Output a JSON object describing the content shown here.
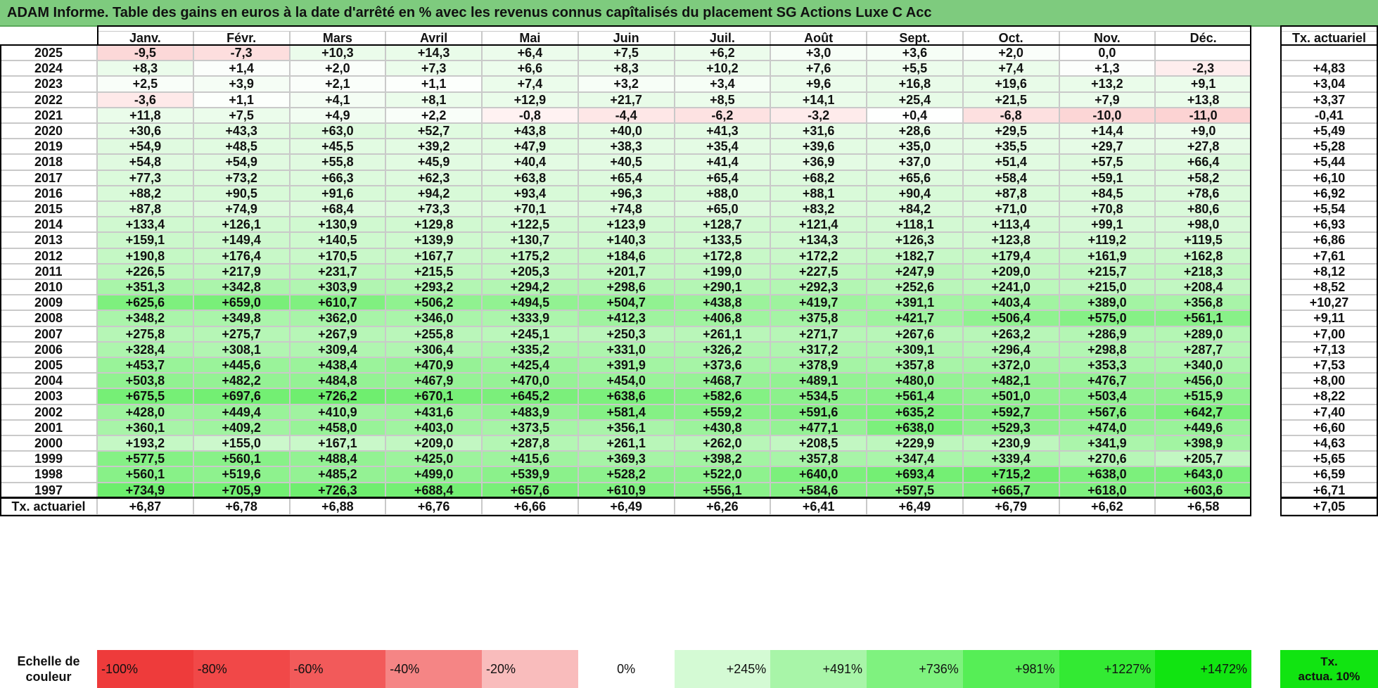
{
  "title": "ADAM Informe. Table des gains en euros à la date d'arrêté en % avec les revenus connus capîtalisés du placement SG Actions Luxe C Acc",
  "months": [
    "Janv.",
    "Févr.",
    "Mars",
    "Avril",
    "Mai",
    "Juin",
    "Juil.",
    "Août",
    "Sept.",
    "Oct.",
    "Nov.",
    "Déc."
  ],
  "tx_header": "Tx. actuariel",
  "rows": [
    {
      "year": "2025",
      "values": [
        "-9,5",
        "-7,3",
        "+10,3",
        "+14,3",
        "+6,4",
        "+7,5",
        "+6,2",
        "+3,0",
        "+3,6",
        "+2,0",
        "0,0",
        ""
      ],
      "tx": ""
    },
    {
      "year": "2024",
      "values": [
        "+8,3",
        "+1,4",
        "+2,0",
        "+7,3",
        "+6,6",
        "+8,3",
        "+10,2",
        "+7,6",
        "+5,5",
        "+7,4",
        "+1,3",
        "-2,3"
      ],
      "tx": "+4,83"
    },
    {
      "year": "2023",
      "values": [
        "+2,5",
        "+3,9",
        "+2,1",
        "+1,1",
        "+7,4",
        "+3,2",
        "+3,4",
        "+9,6",
        "+16,8",
        "+19,6",
        "+13,2",
        "+9,1"
      ],
      "tx": "+3,04"
    },
    {
      "year": "2022",
      "values": [
        "-3,6",
        "+1,1",
        "+4,1",
        "+8,1",
        "+12,9",
        "+21,7",
        "+8,5",
        "+14,1",
        "+25,4",
        "+21,5",
        "+7,9",
        "+13,8"
      ],
      "tx": "+3,37"
    },
    {
      "year": "2021",
      "values": [
        "+11,8",
        "+7,5",
        "+4,9",
        "+2,2",
        "-0,8",
        "-4,4",
        "-6,2",
        "-3,2",
        "+0,4",
        "-6,8",
        "-10,0",
        "-11,0"
      ],
      "tx": "-0,41"
    },
    {
      "year": "2020",
      "values": [
        "+30,6",
        "+43,3",
        "+63,0",
        "+52,7",
        "+43,8",
        "+40,0",
        "+41,3",
        "+31,6",
        "+28,6",
        "+29,5",
        "+14,4",
        "+9,0"
      ],
      "tx": "+5,49"
    },
    {
      "year": "2019",
      "values": [
        "+54,9",
        "+48,5",
        "+45,5",
        "+39,2",
        "+47,9",
        "+38,3",
        "+35,4",
        "+39,6",
        "+35,0",
        "+35,5",
        "+29,7",
        "+27,8"
      ],
      "tx": "+5,28"
    },
    {
      "year": "2018",
      "values": [
        "+54,8",
        "+54,9",
        "+55,8",
        "+45,9",
        "+40,4",
        "+40,5",
        "+41,4",
        "+36,9",
        "+37,0",
        "+51,4",
        "+57,5",
        "+66,4"
      ],
      "tx": "+5,44"
    },
    {
      "year": "2017",
      "values": [
        "+77,3",
        "+73,2",
        "+66,3",
        "+62,3",
        "+63,8",
        "+65,4",
        "+65,4",
        "+68,2",
        "+65,6",
        "+58,4",
        "+59,1",
        "+58,2"
      ],
      "tx": "+6,10"
    },
    {
      "year": "2016",
      "values": [
        "+88,2",
        "+90,5",
        "+91,6",
        "+94,2",
        "+93,4",
        "+96,3",
        "+88,0",
        "+88,1",
        "+90,4",
        "+87,8",
        "+84,5",
        "+78,6"
      ],
      "tx": "+6,92"
    },
    {
      "year": "2015",
      "values": [
        "+87,8",
        "+74,9",
        "+68,4",
        "+73,3",
        "+70,1",
        "+74,8",
        "+65,0",
        "+83,2",
        "+84,2",
        "+71,0",
        "+70,8",
        "+80,6"
      ],
      "tx": "+5,54"
    },
    {
      "year": "2014",
      "values": [
        "+133,4",
        "+126,1",
        "+130,9",
        "+129,8",
        "+122,5",
        "+123,9",
        "+128,7",
        "+121,4",
        "+118,1",
        "+113,4",
        "+99,1",
        "+98,0"
      ],
      "tx": "+6,93"
    },
    {
      "year": "2013",
      "values": [
        "+159,1",
        "+149,4",
        "+140,5",
        "+139,9",
        "+130,7",
        "+140,3",
        "+133,5",
        "+134,3",
        "+126,3",
        "+123,8",
        "+119,2",
        "+119,5"
      ],
      "tx": "+6,86"
    },
    {
      "year": "2012",
      "values": [
        "+190,8",
        "+176,4",
        "+170,5",
        "+167,7",
        "+175,2",
        "+184,6",
        "+172,8",
        "+172,2",
        "+182,7",
        "+179,4",
        "+161,9",
        "+162,8"
      ],
      "tx": "+7,61"
    },
    {
      "year": "2011",
      "values": [
        "+226,5",
        "+217,9",
        "+231,7",
        "+215,5",
        "+205,3",
        "+201,7",
        "+199,0",
        "+227,5",
        "+247,9",
        "+209,0",
        "+215,7",
        "+218,3"
      ],
      "tx": "+8,12"
    },
    {
      "year": "2010",
      "values": [
        "+351,3",
        "+342,8",
        "+303,9",
        "+293,2",
        "+294,2",
        "+298,6",
        "+290,1",
        "+292,3",
        "+252,6",
        "+241,0",
        "+215,0",
        "+208,4"
      ],
      "tx": "+8,52"
    },
    {
      "year": "2009",
      "values": [
        "+625,6",
        "+659,0",
        "+610,7",
        "+506,2",
        "+494,5",
        "+504,7",
        "+438,8",
        "+419,7",
        "+391,1",
        "+403,4",
        "+389,0",
        "+356,8"
      ],
      "tx": "+10,27"
    },
    {
      "year": "2008",
      "values": [
        "+348,2",
        "+349,8",
        "+362,0",
        "+346,0",
        "+333,9",
        "+412,3",
        "+406,8",
        "+375,8",
        "+421,7",
        "+506,4",
        "+575,0",
        "+561,1"
      ],
      "tx": "+9,11"
    },
    {
      "year": "2007",
      "values": [
        "+275,8",
        "+275,7",
        "+267,9",
        "+255,8",
        "+245,1",
        "+250,3",
        "+261,1",
        "+271,7",
        "+267,6",
        "+263,2",
        "+286,9",
        "+289,0"
      ],
      "tx": "+7,00"
    },
    {
      "year": "2006",
      "values": [
        "+328,4",
        "+308,1",
        "+309,4",
        "+306,4",
        "+335,2",
        "+331,0",
        "+326,2",
        "+317,2",
        "+309,1",
        "+296,4",
        "+298,8",
        "+287,7"
      ],
      "tx": "+7,13"
    },
    {
      "year": "2005",
      "values": [
        "+453,7",
        "+445,6",
        "+438,4",
        "+470,9",
        "+425,4",
        "+391,9",
        "+373,6",
        "+378,9",
        "+357,8",
        "+372,0",
        "+353,3",
        "+340,0"
      ],
      "tx": "+7,53"
    },
    {
      "year": "2004",
      "values": [
        "+503,8",
        "+482,2",
        "+484,8",
        "+467,9",
        "+470,0",
        "+454,0",
        "+468,7",
        "+489,1",
        "+480,0",
        "+482,1",
        "+476,7",
        "+456,0"
      ],
      "tx": "+8,00"
    },
    {
      "year": "2003",
      "values": [
        "+675,5",
        "+697,6",
        "+726,2",
        "+670,1",
        "+645,2",
        "+638,6",
        "+582,6",
        "+534,5",
        "+561,4",
        "+501,0",
        "+503,4",
        "+515,9"
      ],
      "tx": "+8,22"
    },
    {
      "year": "2002",
      "values": [
        "+428,0",
        "+449,4",
        "+410,9",
        "+431,6",
        "+483,9",
        "+581,4",
        "+559,2",
        "+591,6",
        "+635,2",
        "+592,7",
        "+567,6",
        "+642,7"
      ],
      "tx": "+7,40"
    },
    {
      "year": "2001",
      "values": [
        "+360,1",
        "+409,2",
        "+458,0",
        "+403,0",
        "+373,5",
        "+356,1",
        "+430,8",
        "+477,1",
        "+638,0",
        "+529,3",
        "+474,0",
        "+449,6"
      ],
      "tx": "+6,60"
    },
    {
      "year": "2000",
      "values": [
        "+193,2",
        "+155,0",
        "+167,1",
        "+209,0",
        "+287,8",
        "+261,1",
        "+262,0",
        "+208,5",
        "+229,9",
        "+230,9",
        "+341,9",
        "+398,9"
      ],
      "tx": "+4,63"
    },
    {
      "year": "1999",
      "values": [
        "+577,5",
        "+560,1",
        "+488,4",
        "+425,0",
        "+415,6",
        "+369,3",
        "+398,2",
        "+357,8",
        "+347,4",
        "+339,4",
        "+270,6",
        "+205,7"
      ],
      "tx": "+5,65"
    },
    {
      "year": "1998",
      "values": [
        "+560,1",
        "+519,6",
        "+485,2",
        "+499,0",
        "+539,9",
        "+528,2",
        "+522,0",
        "+640,0",
        "+693,4",
        "+715,2",
        "+638,0",
        "+643,0"
      ],
      "tx": "+6,59"
    },
    {
      "year": "1997",
      "values": [
        "+734,9",
        "+705,9",
        "+726,3",
        "+688,4",
        "+657,6",
        "+610,9",
        "+556,1",
        "+584,6",
        "+597,5",
        "+665,7",
        "+618,0",
        "+603,6"
      ],
      "tx": "+6,71"
    }
  ],
  "footer": {
    "label": "Tx. actuariel",
    "values": [
      "+6,87",
      "+6,78",
      "+6,88",
      "+6,76",
      "+6,66",
      "+6,49",
      "+6,26",
      "+6,41",
      "+6,49",
      "+6,79",
      "+6,62",
      "+6,58"
    ],
    "tx": "+7,05"
  },
  "legend": {
    "label_line1": "Echelle de",
    "label_line2": "couleur",
    "items": [
      {
        "label": "-100%",
        "color": "#ee3b3b",
        "align": "left"
      },
      {
        "label": "-80%",
        "color": "#f14848",
        "align": "left"
      },
      {
        "label": "-60%",
        "color": "#f25a5a",
        "align": "left"
      },
      {
        "label": "-40%",
        "color": "#f58585",
        "align": "left"
      },
      {
        "label": "-20%",
        "color": "#f9bcbc",
        "align": "left"
      },
      {
        "label": "0%",
        "color": "#ffffff",
        "align": "center"
      },
      {
        "label": "+245%",
        "color": "#d4fad4",
        "align": "right"
      },
      {
        "label": "+491%",
        "color": "#a8f5a8",
        "align": "right"
      },
      {
        "label": "+736%",
        "color": "#7ff27f",
        "align": "right"
      },
      {
        "label": "+981%",
        "color": "#56ee56",
        "align": "right"
      },
      {
        "label": "+1227%",
        "color": "#33ea33",
        "align": "right"
      },
      {
        "label": "+1472%",
        "color": "#11e411",
        "align": "right"
      }
    ],
    "tx_line1": "Tx.",
    "tx_line2": "actua. 10%",
    "tx_color": "#11e411"
  },
  "colors": {
    "title_bg": "#7ecb7e",
    "negative_max": "#ee3b3b",
    "positive_max": "#11e411"
  }
}
